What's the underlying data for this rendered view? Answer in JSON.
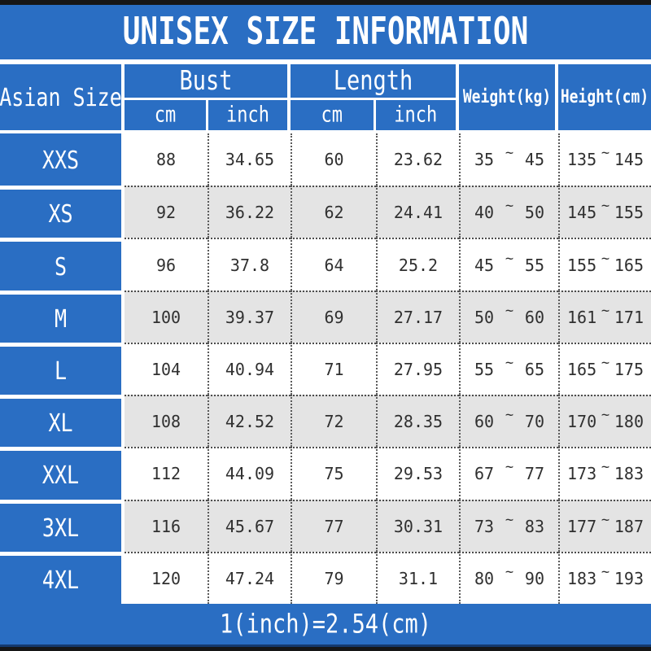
{
  "title": "UNISEX SIZE INFORMATION",
  "footer_note": "1(inch)=2.54(cm)",
  "tilde": "~",
  "colors": {
    "accent_blue": "#2a6ec3",
    "alt_row_gray": "#e4e4e4",
    "strip_black": "#161616",
    "footer_edge_navy": "#143a6e",
    "data_text": "#303030",
    "dotted_grid": "#5a5a5a"
  },
  "header": {
    "asian_size": "Asian Size",
    "bust": "Bust",
    "length": "Length",
    "cm": "cm",
    "inch": "inch",
    "weight": "Weight(kg)",
    "height": "Height(cm)"
  },
  "chart_data": {
    "type": "table",
    "title": "UNISEX SIZE INFORMATION",
    "columns": [
      "Asian Size",
      "Bust cm",
      "Bust inch",
      "Length cm",
      "Length inch",
      "Weight(kg) min~max",
      "Height(cm) min~max"
    ],
    "note": "1(inch)=2.54(cm)",
    "rows": [
      [
        "XXS",
        "88",
        "34.65",
        "60",
        "23.62",
        [
          "35",
          "45"
        ],
        [
          "135",
          "145"
        ]
      ],
      [
        "XS",
        "92",
        "36.22",
        "62",
        "24.41",
        [
          "40",
          "50"
        ],
        [
          "145",
          "155"
        ]
      ],
      [
        "S",
        "96",
        "37.8",
        "64",
        "25.2",
        [
          "45",
          "55"
        ],
        [
          "155",
          "165"
        ]
      ],
      [
        "M",
        "100",
        "39.37",
        "69",
        "27.17",
        [
          "50",
          "60"
        ],
        [
          "161",
          "171"
        ]
      ],
      [
        "L",
        "104",
        "40.94",
        "71",
        "27.95",
        [
          "55",
          "65"
        ],
        [
          "165",
          "175"
        ]
      ],
      [
        "XL",
        "108",
        "42.52",
        "72",
        "28.35",
        [
          "60",
          "70"
        ],
        [
          "170",
          "180"
        ]
      ],
      [
        "XXL",
        "112",
        "44.09",
        "75",
        "29.53",
        [
          "67",
          "77"
        ],
        [
          "173",
          "183"
        ]
      ],
      [
        "3XL",
        "116",
        "45.67",
        "77",
        "30.31",
        [
          "73",
          "83"
        ],
        [
          "177",
          "187"
        ]
      ],
      [
        "4XL",
        "120",
        "47.24",
        "79",
        "31.1",
        [
          "80",
          "90"
        ],
        [
          "183",
          "193"
        ]
      ]
    ]
  }
}
